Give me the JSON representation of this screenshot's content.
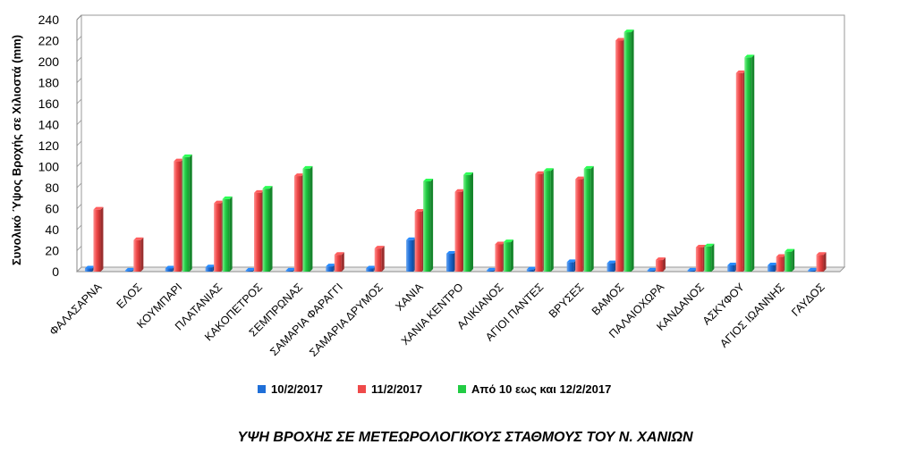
{
  "chart_data": {
    "type": "bar",
    "title": "ΥΨΗ ΒΡΟΧΗΣ ΣΕ ΜΕΤΕΩΡΟΛΟΓΙΚΟΥΣ ΣΤΑΘΜΟΥΣ ΤΟΥ Ν. ΧΑΝΙΩΝ",
    "ylabel": "Συνολικό Ύψος Βροχής σε Χιλιοστά (mm)",
    "xlabel": "",
    "ylim": [
      0,
      240
    ],
    "yticks": [
      "0",
      "20",
      "40",
      "60",
      "80",
      "100",
      "120",
      "140",
      "160",
      "180",
      "200",
      "220",
      "240"
    ],
    "grid": true,
    "legend_position": "bottom",
    "categories": [
      "ΦΑΛΑΣΑΡΝΑ",
      "ΕΛΟΣ",
      "ΚΟΥΜΠΑΡΙ",
      "ΠΛΑΤΑΝΙΑΣ",
      "ΚΑΚΟΠΕΤΡΟΣ",
      "ΣΕΜΠΡΩΝΑΣ",
      "ΣΑΜΑΡΙΑ ΦΑΡΑΓΓΙ",
      "ΣΑΜΑΡΙΑ ΔΡΥΜΟΣ",
      "ΧΑΝΙΑ",
      "ΧΑΝΙΑ ΚΕΝΤΡΟ",
      "ΑΛΙΚΙΑΝΟΣ",
      "ΑΓΙΟΙ ΠΑΝΤΕΣ",
      "ΒΡΥΣΕΣ",
      "ΒΑΜΟΣ",
      "ΠΑΛΑΙΟΧΩΡΑ",
      "ΚΑΝΔΑΝΟΣ",
      "ΑΣΚΥΦΟΥ",
      "ΑΓΙΟΣ ΙΩΑΝΝΗΣ",
      "ΓΑΥΔΟΣ"
    ],
    "series": [
      {
        "name": "10/2/2017",
        "color": "#1f6fd8",
        "values": [
          3,
          1,
          3,
          4,
          1,
          1,
          5,
          3,
          30,
          17,
          1,
          2,
          9,
          8,
          1,
          1,
          6,
          6,
          1
        ]
      },
      {
        "name": "11/2/2017",
        "color": "#ef4a4a",
        "values": [
          59,
          30,
          105,
          65,
          75,
          91,
          16,
          22,
          57,
          76,
          26,
          93,
          88,
          220,
          11,
          23,
          189,
          14,
          16
        ]
      },
      {
        "name": "Από 10 εως και 12/2/2017",
        "color": "#22cc44",
        "values": [
          null,
          null,
          109,
          69,
          79,
          98,
          null,
          null,
          86,
          92,
          28,
          96,
          98,
          228,
          null,
          24,
          204,
          19,
          null
        ]
      }
    ]
  }
}
